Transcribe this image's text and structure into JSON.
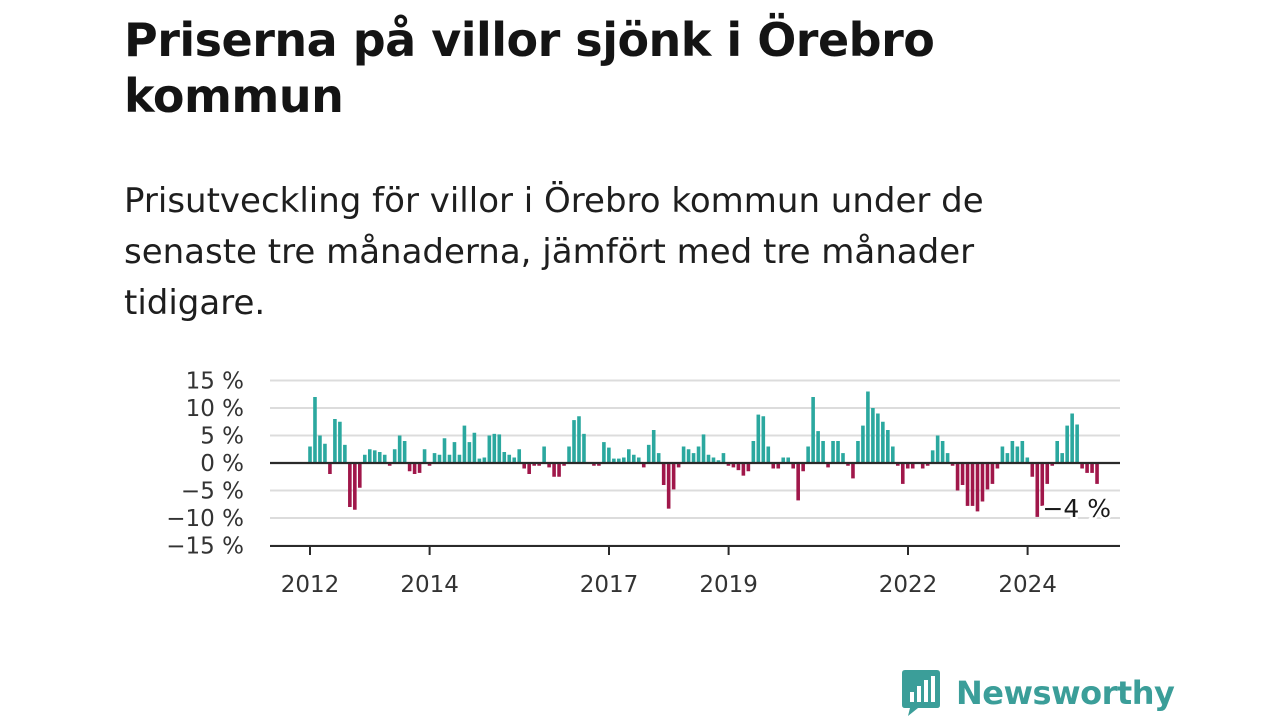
{
  "header": {
    "title": "Priserna på villor sjönk i Örebro kommun",
    "subtitle": "Prisutveckling för villor i Örebro kommun under de senaste tre månaderna, jämfört med tre månader tidigare."
  },
  "chart_data": {
    "type": "bar",
    "title": "Priserna på villor sjönk i Örebro kommun",
    "subtitle": "Prisutveckling för villor i Örebro kommun under de senaste tre månaderna, jämfört med tre månader tidigare.",
    "xlabel": "",
    "ylabel": "",
    "ylim": [
      -15,
      15
    ],
    "grid": true,
    "legend": "none",
    "y_ticks": [
      {
        "value": 15,
        "label": "15 %"
      },
      {
        "value": 10,
        "label": "10 %"
      },
      {
        "value": 5,
        "label": "5 %"
      },
      {
        "value": 0,
        "label": "0 %"
      },
      {
        "value": -5,
        "label": "−5 %"
      },
      {
        "value": -10,
        "label": "−10 %"
      },
      {
        "value": -15,
        "label": "−15 %"
      }
    ],
    "x_ticks": [
      {
        "value": 2012.0,
        "label": "2012"
      },
      {
        "value": 2014.0,
        "label": "2014"
      },
      {
        "value": 2017.0,
        "label": "2017"
      },
      {
        "value": 2019.0,
        "label": "2019"
      },
      {
        "value": 2022.0,
        "label": "2022"
      },
      {
        "value": 2024.0,
        "label": "2024"
      }
    ],
    "x_start": 2012.0,
    "step": 0.0833,
    "values": [
      3,
      12,
      5,
      3.5,
      -2,
      8,
      7.5,
      3.3,
      -8,
      -8.5,
      -4.5,
      1.5,
      2.5,
      2.3,
      2,
      1.5,
      -0.5,
      2.5,
      5,
      4,
      -1.5,
      -2,
      -1.8,
      2.5,
      -0.5,
      1.8,
      1.5,
      4.5,
      1.5,
      3.8,
      1.5,
      6.8,
      3.8,
      5.5,
      0.8,
      1,
      5,
      5.3,
      5.2,
      2,
      1.5,
      1,
      2.5,
      -1,
      -2,
      -0.5,
      -0.5,
      3,
      -0.8,
      -2.5,
      -2.5,
      -0.5,
      3,
      7.8,
      8.5,
      5.3,
      0,
      -0.5,
      -0.5,
      3.8,
      2.8,
      0.8,
      0.8,
      1,
      2.5,
      1.5,
      1,
      -0.8,
      3.3,
      6,
      1.8,
      -4,
      -8.3,
      -4.8,
      -0.8,
      3,
      2.5,
      1.8,
      3,
      5.2,
      1.5,
      1,
      0.5,
      1.8,
      -0.5,
      -0.8,
      -1.3,
      -2.3,
      -1.5,
      4,
      8.8,
      8.5,
      3,
      -1,
      -1,
      1,
      1,
      -1,
      -6.8,
      -1.5,
      3,
      12,
      5.8,
      4,
      -0.8,
      4,
      4,
      1.8,
      -0.5,
      -2.8,
      4,
      6.8,
      13,
      10,
      9,
      7.5,
      6,
      3,
      -0.5,
      -3.8,
      -1,
      -1,
      0,
      -1,
      -0.5,
      2.3,
      5,
      4,
      1.8,
      -0.5,
      -5,
      -4,
      -7.8,
      -7.8,
      -8.8,
      -7,
      -4.8,
      -3.8,
      -1,
      3,
      1.8,
      4,
      3,
      4,
      1,
      -2.5,
      -9.8,
      -7.8,
      -3.8,
      -0.5,
      4,
      1.8,
      6.8,
      9,
      7,
      -1,
      -1.8,
      -1.8,
      -3.8
    ],
    "annotation": {
      "text": "−4 %",
      "value": -4
    }
  },
  "colors": {
    "positive": "#2ba89f",
    "negative": "#a0174a",
    "grid": "#dcdcdc",
    "axis": "#2a2a2a",
    "brand": "#3b9e99"
  },
  "logo": {
    "icon": "newsworthy-logo-icon",
    "text": "Newsworthy"
  }
}
